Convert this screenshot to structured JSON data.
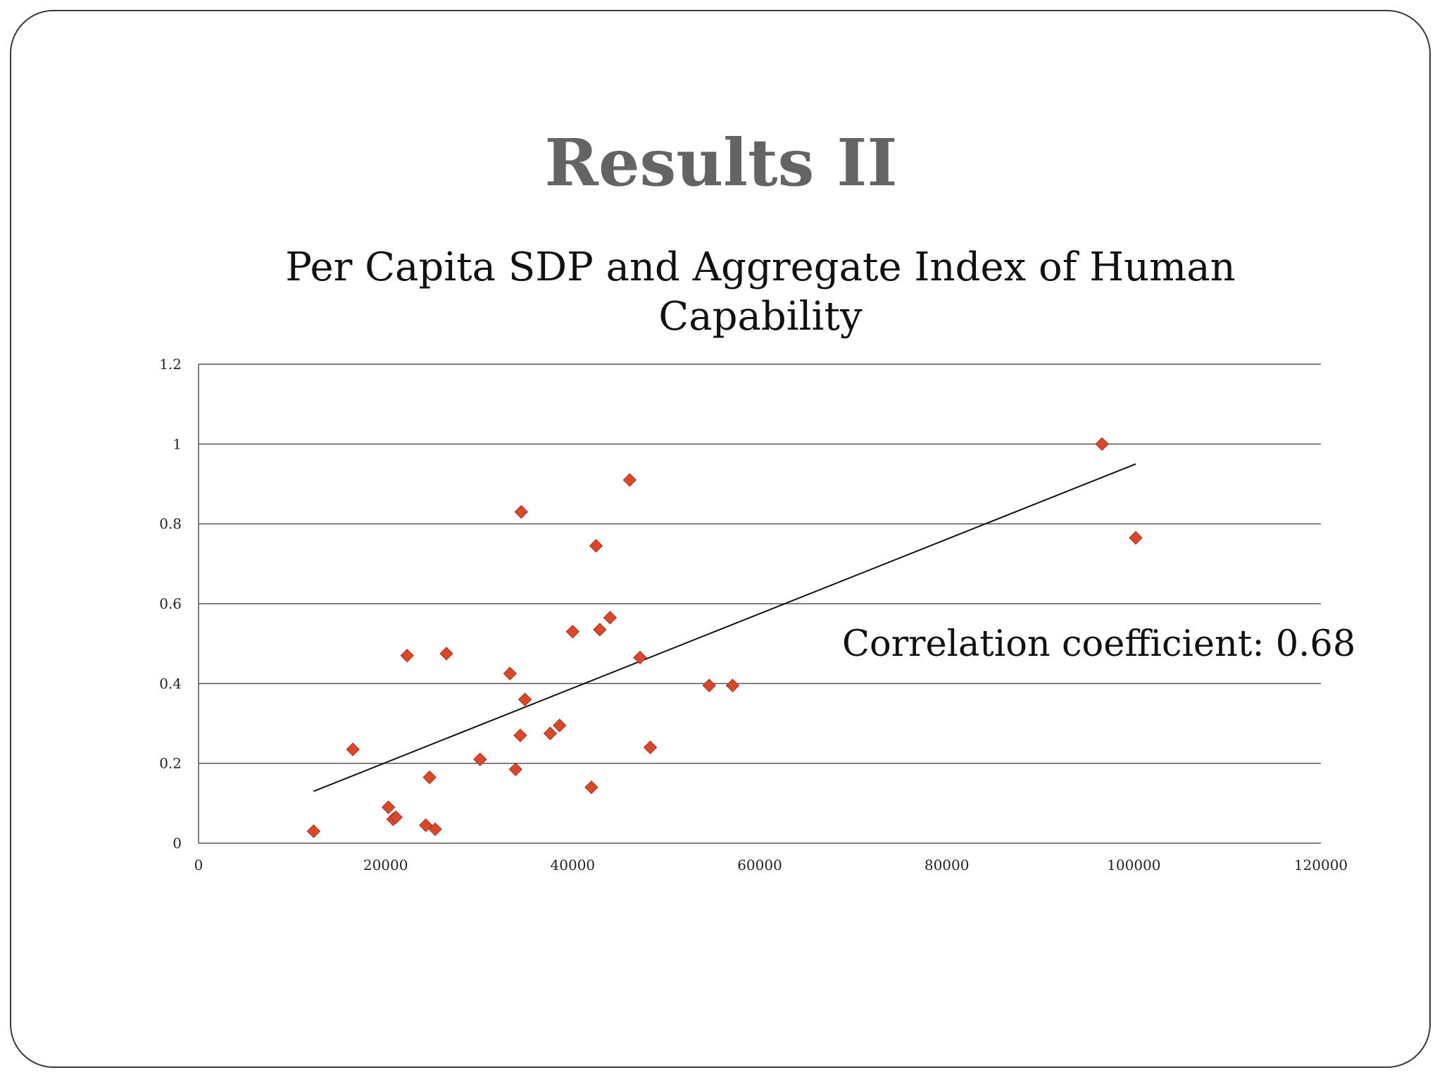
{
  "slide": {
    "title": "Results II"
  },
  "chart_data": {
    "type": "scatter",
    "title": "Per Capita SDP and Aggregate Index of Human\nCapability",
    "xlabel": "",
    "ylabel": "",
    "xlim": [
      0,
      120000
    ],
    "ylim": [
      0,
      1.2
    ],
    "x_ticks": [
      "0",
      "20000",
      "40000",
      "60000",
      "80000",
      "100000",
      "120000"
    ],
    "y_ticks": [
      "0",
      "0.2",
      "0.4",
      "0.6",
      "0.8",
      "1",
      "1.2"
    ],
    "grid": "horizontal",
    "marker": "diamond",
    "marker_color": "#d9482b",
    "points": [
      {
        "x": 12300,
        "y": 0.03
      },
      {
        "x": 16500,
        "y": 0.235
      },
      {
        "x": 20300,
        "y": 0.09
      },
      {
        "x": 20800,
        "y": 0.06
      },
      {
        "x": 21100,
        "y": 0.065
      },
      {
        "x": 22300,
        "y": 0.47
      },
      {
        "x": 24300,
        "y": 0.045
      },
      {
        "x": 24700,
        "y": 0.165
      },
      {
        "x": 25300,
        "y": 0.035
      },
      {
        "x": 26500,
        "y": 0.475
      },
      {
        "x": 30100,
        "y": 0.21
      },
      {
        "x": 33300,
        "y": 0.425
      },
      {
        "x": 33900,
        "y": 0.185
      },
      {
        "x": 34400,
        "y": 0.27
      },
      {
        "x": 34500,
        "y": 0.83
      },
      {
        "x": 34900,
        "y": 0.36
      },
      {
        "x": 37600,
        "y": 0.275
      },
      {
        "x": 38600,
        "y": 0.295
      },
      {
        "x": 40000,
        "y": 0.53
      },
      {
        "x": 42000,
        "y": 0.14
      },
      {
        "x": 42500,
        "y": 0.745
      },
      {
        "x": 42900,
        "y": 0.535
      },
      {
        "x": 44000,
        "y": 0.565
      },
      {
        "x": 46100,
        "y": 0.91
      },
      {
        "x": 47200,
        "y": 0.465
      },
      {
        "x": 48300,
        "y": 0.24
      },
      {
        "x": 54600,
        "y": 0.395
      },
      {
        "x": 57100,
        "y": 0.395
      },
      {
        "x": 96600,
        "y": 1.0
      },
      {
        "x": 100200,
        "y": 0.765
      }
    ],
    "trendline": {
      "x": [
        12300,
        100200
      ],
      "y": [
        0.13,
        0.95
      ]
    },
    "annotation": "Correlation coefficient: 0.68"
  }
}
